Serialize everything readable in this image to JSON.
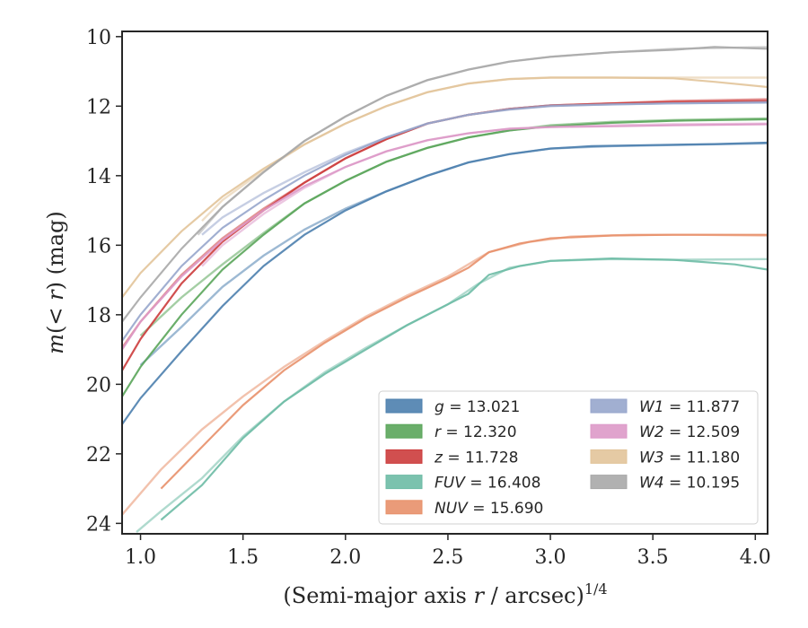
{
  "chart_data": {
    "type": "line",
    "title": "",
    "xlabel_main": "(Semi-major axis ",
    "xlabel_var": "r",
    "xlabel_rest": " / arcsec)",
    "xlabel_sup": "1/4",
    "ylabel_pre": "m",
    "ylabel_mid": "(< ",
    "ylabel_var": "r",
    "ylabel_post": ") (mag)",
    "xlim": [
      0.91,
      4.06
    ],
    "ylim": [
      24.3,
      9.85
    ],
    "y_inverted": true,
    "xticks": [
      1.0,
      1.5,
      2.0,
      2.5,
      3.0,
      3.5,
      4.0
    ],
    "xtick_labels": [
      "1.0",
      "1.5",
      "2.0",
      "2.5",
      "3.0",
      "3.5",
      "4.0"
    ],
    "yticks": [
      10,
      12,
      14,
      16,
      18,
      20,
      22,
      24
    ],
    "ytick_labels": [
      "10",
      "12",
      "14",
      "16",
      "18",
      "20",
      "22",
      "24"
    ],
    "grid": false,
    "legend_position": "lower-right",
    "series": [
      {
        "name": "g",
        "value": "13.021",
        "color": "#4c7fae",
        "x": [
          0.91,
          1.0,
          1.2,
          1.4,
          1.6,
          1.8,
          2.0,
          2.2,
          2.4,
          2.6,
          2.8,
          3.0,
          3.2,
          3.5,
          3.8,
          4.06
        ],
        "y": [
          21.15,
          20.4,
          19.05,
          17.75,
          16.6,
          15.7,
          15.0,
          14.45,
          14.0,
          13.62,
          13.38,
          13.22,
          13.15,
          13.12,
          13.09,
          13.05
        ],
        "x2": [
          1.0,
          1.2,
          1.4,
          1.6,
          1.8,
          2.0,
          2.2,
          2.4,
          2.6,
          2.8,
          3.0,
          3.3,
          3.6,
          4.06
        ],
        "y2": [
          19.45,
          18.35,
          17.2,
          16.3,
          15.55,
          14.95,
          14.45,
          14.0,
          13.62,
          13.38,
          13.22,
          13.15,
          13.12,
          13.07
        ]
      },
      {
        "name": "r",
        "value": "12.320",
        "color": "#5aa55a",
        "x": [
          0.91,
          1.0,
          1.2,
          1.4,
          1.6,
          1.8,
          2.0,
          2.2,
          2.4,
          2.6,
          2.8,
          3.0,
          3.3,
          3.6,
          4.06
        ],
        "y": [
          20.35,
          19.5,
          18.0,
          16.7,
          15.7,
          14.8,
          14.15,
          13.6,
          13.2,
          12.9,
          12.7,
          12.58,
          12.48,
          12.42,
          12.38
        ],
        "x2": [
          1.0,
          1.2,
          1.4,
          1.6,
          1.8,
          2.0,
          2.2,
          2.4,
          2.6,
          2.8,
          3.0,
          3.3,
          3.6,
          4.06
        ],
        "y2": [
          18.6,
          17.5,
          16.55,
          15.65,
          14.8,
          14.15,
          13.6,
          13.2,
          12.9,
          12.7,
          12.55,
          12.45,
          12.4,
          12.35
        ]
      },
      {
        "name": "z",
        "value": "11.728",
        "color": "#cc3c3c",
        "x": [
          0.91,
          1.0,
          1.2,
          1.4,
          1.6,
          1.8,
          2.0,
          2.2,
          2.4,
          2.6,
          2.8,
          3.0,
          3.3,
          3.6,
          4.06
        ],
        "y": [
          19.6,
          18.7,
          17.1,
          15.9,
          15.0,
          14.2,
          13.5,
          12.95,
          12.5,
          12.25,
          12.08,
          11.98,
          11.92,
          11.88,
          11.85
        ],
        "x2": [
          0.91,
          1.0,
          1.2,
          1.4,
          1.6,
          1.8,
          2.0,
          2.2,
          2.4,
          2.6,
          2.8,
          3.0,
          3.3,
          3.6,
          4.06
        ],
        "y2": [
          18.95,
          18.2,
          16.85,
          15.8,
          14.95,
          14.2,
          13.5,
          12.95,
          12.5,
          12.25,
          12.08,
          11.98,
          11.92,
          11.85,
          11.8
        ]
      },
      {
        "name": "FUV",
        "value": "16.408",
        "color": "#6dbba5",
        "x": [
          1.1,
          1.3,
          1.5,
          1.7,
          1.9,
          2.1,
          2.3,
          2.5,
          2.6,
          2.7,
          2.85,
          3.0,
          3.3,
          3.6,
          3.9,
          4.06
        ],
        "y": [
          23.9,
          22.9,
          21.55,
          20.5,
          19.7,
          19.0,
          18.3,
          17.7,
          17.4,
          16.85,
          16.6,
          16.45,
          16.38,
          16.42,
          16.55,
          16.7
        ],
        "x2": [
          0.98,
          1.1,
          1.3,
          1.5,
          1.7,
          1.9,
          2.1,
          2.3,
          2.5,
          2.65,
          2.8,
          3.0,
          3.3,
          3.6,
          4.06
        ],
        "y2": [
          24.25,
          23.65,
          22.7,
          21.5,
          20.5,
          19.65,
          18.95,
          18.3,
          17.7,
          17.1,
          16.65,
          16.45,
          16.4,
          16.42,
          16.4
        ]
      },
      {
        "name": "NUV",
        "value": "15.690",
        "color": "#e8906a",
        "x": [
          1.1,
          1.3,
          1.5,
          1.7,
          1.9,
          2.1,
          2.3,
          2.5,
          2.6,
          2.7,
          2.85,
          3.0,
          3.3,
          3.6,
          3.9,
          4.06
        ],
        "y": [
          23.0,
          21.8,
          20.6,
          19.6,
          18.8,
          18.1,
          17.5,
          16.95,
          16.65,
          16.2,
          15.95,
          15.8,
          15.72,
          15.7,
          15.7,
          15.7
        ],
        "x2": [
          0.91,
          1.1,
          1.3,
          1.5,
          1.7,
          1.9,
          2.1,
          2.3,
          2.5,
          2.7,
          2.9,
          3.1,
          3.4,
          3.7,
          4.06
        ],
        "y2": [
          23.75,
          22.45,
          21.3,
          20.35,
          19.5,
          18.75,
          18.05,
          17.45,
          16.9,
          16.2,
          15.9,
          15.75,
          15.7,
          15.7,
          15.72
        ]
      },
      {
        "name": "W1",
        "value": "11.877",
        "color": "#97a6cc",
        "x": [
          0.91,
          1.0,
          1.2,
          1.4,
          1.6,
          1.8,
          2.0,
          2.2,
          2.4,
          2.6,
          2.8,
          3.0,
          3.3,
          3.6,
          4.06
        ],
        "y": [
          18.75,
          18.0,
          16.6,
          15.5,
          14.7,
          14.0,
          13.4,
          12.9,
          12.5,
          12.25,
          12.1,
          12.0,
          11.95,
          11.92,
          11.9
        ],
        "x2": [
          1.3,
          1.4,
          1.6,
          1.8,
          2.0,
          2.2,
          2.4,
          2.6,
          2.8,
          3.0,
          3.3,
          3.6,
          4.06
        ],
        "y2": [
          15.7,
          15.2,
          14.5,
          13.9,
          13.35,
          12.9,
          12.5,
          12.25,
          12.08,
          11.98,
          11.95,
          11.92,
          11.88
        ]
      },
      {
        "name": "W2",
        "value": "12.509",
        "color": "#dd99c8",
        "x": [
          0.91,
          1.0,
          1.2,
          1.4,
          1.6,
          1.8,
          2.0,
          2.2,
          2.4,
          2.6,
          2.8,
          3.0,
          3.3,
          3.6,
          4.06
        ],
        "y": [
          19.0,
          18.2,
          16.9,
          15.85,
          15.0,
          14.3,
          13.75,
          13.3,
          12.98,
          12.78,
          12.65,
          12.6,
          12.58,
          12.55,
          12.52
        ],
        "x2": [
          1.3,
          1.4,
          1.6,
          1.8,
          2.0,
          2.2,
          2.4,
          2.6,
          2.8,
          3.0,
          3.3,
          3.6,
          4.06
        ],
        "y2": [
          16.6,
          16.0,
          15.1,
          14.35,
          13.75,
          13.3,
          12.98,
          12.78,
          12.65,
          12.6,
          12.55,
          12.52,
          12.5
        ]
      },
      {
        "name": "W3",
        "value": "11.180",
        "color": "#e2c49a",
        "x": [
          0.91,
          1.0,
          1.2,
          1.4,
          1.6,
          1.8,
          2.0,
          2.2,
          2.4,
          2.6,
          2.8,
          3.0,
          3.3,
          3.6,
          3.8,
          4.06
        ],
        "y": [
          17.5,
          16.8,
          15.6,
          14.6,
          13.8,
          13.1,
          12.5,
          12.0,
          11.6,
          11.35,
          11.22,
          11.18,
          11.18,
          11.2,
          11.3,
          11.45
        ],
        "x2": [
          1.3,
          1.4,
          1.6,
          1.8,
          2.0,
          2.2,
          2.4,
          2.6,
          2.8,
          3.0,
          3.3,
          3.6,
          4.06
        ],
        "y2": [
          15.3,
          14.7,
          13.85,
          13.1,
          12.5,
          12.0,
          11.6,
          11.35,
          11.22,
          11.18,
          11.18,
          11.18,
          11.18
        ]
      },
      {
        "name": "W4",
        "value": "10.195",
        "color": "#a8a8a8",
        "x": [
          0.91,
          1.0,
          1.2,
          1.4,
          1.6,
          1.8,
          2.0,
          2.2,
          2.4,
          2.6,
          2.8,
          3.0,
          3.3,
          3.6,
          3.8,
          4.06
        ],
        "y": [
          18.2,
          17.5,
          16.1,
          14.9,
          13.9,
          13.0,
          12.3,
          11.7,
          11.25,
          10.95,
          10.72,
          10.58,
          10.45,
          10.38,
          10.3,
          10.35
        ],
        "x2": [
          1.28,
          1.4,
          1.6,
          1.8,
          2.0,
          2.2,
          2.4,
          2.6,
          2.8,
          3.0,
          3.3,
          3.6,
          4.06
        ],
        "y2": [
          15.7,
          14.9,
          13.9,
          13.0,
          12.3,
          11.7,
          11.25,
          10.95,
          10.72,
          10.58,
          10.45,
          10.35,
          10.3
        ]
      }
    ]
  }
}
